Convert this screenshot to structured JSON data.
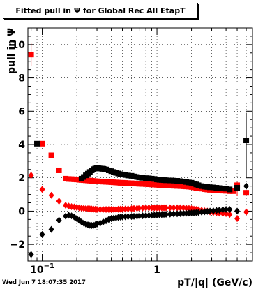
{
  "title": "Fitted pull in Ψ  for Global Rec All EtapT",
  "footer": "Wed Jun  7 18:07:35 2017",
  "colors": {
    "black_series": "#000000",
    "red_series": "#ff0000"
  },
  "chart_data": {
    "type": "scatter",
    "title": "Fitted pull in Ψ  for Global Rec All EtapT",
    "xlabel": "pT/|q| (GeV/c)",
    "ylabel": "pull in Ψ",
    "xscale": "log",
    "xlim": [
      0.075,
      6.8
    ],
    "ylim": [
      -3.0,
      11.0
    ],
    "x_tick_labels": [
      {
        "value": 0.1,
        "label": "10",
        "exp": "-1"
      },
      {
        "value": 1,
        "label": "1"
      }
    ],
    "y_tick_labels": [
      -2,
      0,
      2,
      4,
      6,
      8,
      10
    ],
    "grid": true,
    "legend": "none",
    "series": [
      {
        "marker": "square",
        "color": "#ff0000",
        "points": [
          [
            0.08,
            9.4
          ],
          [
            0.1,
            4.05
          ],
          [
            0.12,
            3.35
          ],
          [
            0.14,
            2.45
          ],
          [
            0.16,
            1.95
          ],
          [
            0.17,
            1.93
          ],
          [
            0.18,
            1.92
          ],
          [
            0.19,
            1.91
          ],
          [
            0.2,
            1.9
          ],
          [
            0.21,
            1.88
          ],
          [
            0.22,
            1.87
          ],
          [
            0.23,
            1.86
          ],
          [
            0.24,
            1.85
          ],
          [
            0.25,
            1.84
          ],
          [
            0.26,
            1.83
          ],
          [
            0.27,
            1.82
          ],
          [
            0.28,
            1.81
          ],
          [
            0.29,
            1.8
          ],
          [
            0.3,
            1.79
          ],
          [
            0.32,
            1.78
          ],
          [
            0.34,
            1.77
          ],
          [
            0.36,
            1.76
          ],
          [
            0.38,
            1.75
          ],
          [
            0.4,
            1.74
          ],
          [
            0.42,
            1.73
          ],
          [
            0.44,
            1.72
          ],
          [
            0.46,
            1.71
          ],
          [
            0.48,
            1.7
          ],
          [
            0.5,
            1.7
          ],
          [
            0.53,
            1.69
          ],
          [
            0.56,
            1.68
          ],
          [
            0.6,
            1.67
          ],
          [
            0.63,
            1.66
          ],
          [
            0.67,
            1.65
          ],
          [
            0.7,
            1.64
          ],
          [
            0.75,
            1.63
          ],
          [
            0.8,
            1.62
          ],
          [
            0.85,
            1.61
          ],
          [
            0.9,
            1.6
          ],
          [
            0.95,
            1.59
          ],
          [
            1.0,
            1.58
          ],
          [
            1.05,
            1.57
          ],
          [
            1.1,
            1.56
          ],
          [
            1.15,
            1.55
          ],
          [
            1.2,
            1.54
          ],
          [
            1.3,
            1.53
          ],
          [
            1.4,
            1.52
          ],
          [
            1.5,
            1.51
          ],
          [
            1.6,
            1.5
          ],
          [
            1.7,
            1.49
          ],
          [
            1.8,
            1.48
          ],
          [
            1.9,
            1.47
          ],
          [
            2.0,
            1.45
          ],
          [
            2.1,
            1.43
          ],
          [
            2.2,
            1.4
          ],
          [
            2.3,
            1.38
          ],
          [
            2.45,
            1.35
          ],
          [
            2.6,
            1.32
          ],
          [
            2.75,
            1.3
          ],
          [
            2.9,
            1.28
          ],
          [
            3.1,
            1.27
          ],
          [
            3.3,
            1.26
          ],
          [
            3.5,
            1.25
          ],
          [
            3.75,
            1.23
          ],
          [
            4.0,
            1.22
          ],
          [
            4.3,
            1.2
          ],
          [
            4.6,
            1.2
          ],
          [
            5.0,
            1.55
          ],
          [
            6.0,
            1.1
          ]
        ]
      },
      {
        "marker": "square",
        "color": "#000000",
        "points": [
          [
            0.09,
            4.05
          ],
          [
            0.22,
            1.95
          ],
          [
            0.23,
            2.05
          ],
          [
            0.24,
            2.15
          ],
          [
            0.25,
            2.25
          ],
          [
            0.26,
            2.35
          ],
          [
            0.27,
            2.45
          ],
          [
            0.28,
            2.52
          ],
          [
            0.29,
            2.56
          ],
          [
            0.3,
            2.58
          ],
          [
            0.31,
            2.57
          ],
          [
            0.32,
            2.56
          ],
          [
            0.33,
            2.55
          ],
          [
            0.34,
            2.54
          ],
          [
            0.35,
            2.52
          ],
          [
            0.36,
            2.5
          ],
          [
            0.38,
            2.45
          ],
          [
            0.4,
            2.4
          ],
          [
            0.42,
            2.35
          ],
          [
            0.44,
            2.3
          ],
          [
            0.46,
            2.26
          ],
          [
            0.48,
            2.22
          ],
          [
            0.5,
            2.2
          ],
          [
            0.53,
            2.17
          ],
          [
            0.56,
            2.14
          ],
          [
            0.6,
            2.12
          ],
          [
            0.63,
            2.08
          ],
          [
            0.67,
            2.05
          ],
          [
            0.7,
            2.02
          ],
          [
            0.75,
            2.0
          ],
          [
            0.8,
            1.98
          ],
          [
            0.85,
            1.97
          ],
          [
            0.9,
            1.95
          ],
          [
            0.95,
            1.93
          ],
          [
            1.0,
            1.9
          ],
          [
            1.05,
            1.88
          ],
          [
            1.1,
            1.87
          ],
          [
            1.15,
            1.86
          ],
          [
            1.2,
            1.85
          ],
          [
            1.3,
            1.84
          ],
          [
            1.4,
            1.83
          ],
          [
            1.5,
            1.82
          ],
          [
            1.6,
            1.8
          ],
          [
            1.7,
            1.78
          ],
          [
            1.8,
            1.75
          ],
          [
            1.9,
            1.72
          ],
          [
            2.0,
            1.7
          ],
          [
            2.1,
            1.65
          ],
          [
            2.2,
            1.6
          ],
          [
            2.3,
            1.55
          ],
          [
            2.45,
            1.5
          ],
          [
            2.6,
            1.47
          ],
          [
            2.75,
            1.45
          ],
          [
            2.9,
            1.43
          ],
          [
            3.1,
            1.42
          ],
          [
            3.3,
            1.4
          ],
          [
            3.5,
            1.38
          ],
          [
            3.75,
            1.36
          ],
          [
            4.0,
            1.35
          ],
          [
            4.3,
            1.3
          ],
          [
            5.0,
            1.4
          ],
          [
            6.0,
            4.25
          ]
        ]
      },
      {
        "marker": "diamond",
        "color": "#ff0000",
        "points": [
          [
            0.08,
            2.15
          ],
          [
            0.1,
            1.3
          ],
          [
            0.12,
            0.95
          ],
          [
            0.14,
            0.6
          ],
          [
            0.16,
            0.35
          ],
          [
            0.17,
            0.3
          ],
          [
            0.18,
            0.27
          ],
          [
            0.19,
            0.25
          ],
          [
            0.2,
            0.22
          ],
          [
            0.21,
            0.2
          ],
          [
            0.22,
            0.18
          ],
          [
            0.23,
            0.17
          ],
          [
            0.24,
            0.16
          ],
          [
            0.25,
            0.15
          ],
          [
            0.26,
            0.14
          ],
          [
            0.27,
            0.13
          ],
          [
            0.28,
            0.12
          ],
          [
            0.29,
            0.11
          ],
          [
            0.3,
            0.1
          ],
          [
            0.32,
            0.1
          ],
          [
            0.34,
            0.1
          ],
          [
            0.36,
            0.1
          ],
          [
            0.38,
            0.1
          ],
          [
            0.4,
            0.1
          ],
          [
            0.42,
            0.1
          ],
          [
            0.44,
            0.1
          ],
          [
            0.46,
            0.11
          ],
          [
            0.48,
            0.12
          ],
          [
            0.5,
            0.12
          ],
          [
            0.53,
            0.13
          ],
          [
            0.56,
            0.14
          ],
          [
            0.6,
            0.15
          ],
          [
            0.63,
            0.16
          ],
          [
            0.67,
            0.17
          ],
          [
            0.7,
            0.18
          ],
          [
            0.75,
            0.19
          ],
          [
            0.8,
            0.2
          ],
          [
            0.85,
            0.2
          ],
          [
            0.9,
            0.2
          ],
          [
            0.95,
            0.2
          ],
          [
            1.0,
            0.2
          ],
          [
            1.05,
            0.2
          ],
          [
            1.1,
            0.2
          ],
          [
            1.15,
            0.2
          ],
          [
            1.2,
            0.2
          ],
          [
            1.3,
            0.2
          ],
          [
            1.4,
            0.2
          ],
          [
            1.5,
            0.2
          ],
          [
            1.6,
            0.2
          ],
          [
            1.7,
            0.2
          ],
          [
            1.8,
            0.18
          ],
          [
            1.9,
            0.16
          ],
          [
            2.0,
            0.15
          ],
          [
            2.1,
            0.12
          ],
          [
            2.2,
            0.1
          ],
          [
            2.3,
            0.08
          ],
          [
            2.45,
            0.05
          ],
          [
            2.6,
            0.02
          ],
          [
            2.75,
            0.0
          ],
          [
            2.9,
            -0.05
          ],
          [
            3.1,
            -0.08
          ],
          [
            3.3,
            -0.1
          ],
          [
            3.5,
            -0.12
          ],
          [
            3.75,
            -0.14
          ],
          [
            4.0,
            -0.15
          ],
          [
            4.3,
            -0.2
          ],
          [
            5.0,
            -0.45
          ],
          [
            6.0,
            -0.05
          ]
        ]
      },
      {
        "marker": "diamond",
        "color": "#000000",
        "points": [
          [
            0.08,
            -2.6
          ],
          [
            0.1,
            -1.4
          ],
          [
            0.12,
            -1.1
          ],
          [
            0.14,
            -0.55
          ],
          [
            0.16,
            -0.3
          ],
          [
            0.17,
            -0.25
          ],
          [
            0.18,
            -0.28
          ],
          [
            0.19,
            -0.35
          ],
          [
            0.2,
            -0.45
          ],
          [
            0.21,
            -0.55
          ],
          [
            0.22,
            -0.65
          ],
          [
            0.23,
            -0.72
          ],
          [
            0.24,
            -0.78
          ],
          [
            0.25,
            -0.82
          ],
          [
            0.26,
            -0.85
          ],
          [
            0.27,
            -0.86
          ],
          [
            0.28,
            -0.85
          ],
          [
            0.29,
            -0.82
          ],
          [
            0.3,
            -0.78
          ],
          [
            0.32,
            -0.72
          ],
          [
            0.34,
            -0.65
          ],
          [
            0.36,
            -0.58
          ],
          [
            0.38,
            -0.5
          ],
          [
            0.4,
            -0.45
          ],
          [
            0.42,
            -0.42
          ],
          [
            0.44,
            -0.4
          ],
          [
            0.46,
            -0.38
          ],
          [
            0.48,
            -0.36
          ],
          [
            0.5,
            -0.35
          ],
          [
            0.53,
            -0.34
          ],
          [
            0.56,
            -0.33
          ],
          [
            0.6,
            -0.32
          ],
          [
            0.63,
            -0.31
          ],
          [
            0.67,
            -0.3
          ],
          [
            0.7,
            -0.29
          ],
          [
            0.75,
            -0.28
          ],
          [
            0.8,
            -0.27
          ],
          [
            0.85,
            -0.26
          ],
          [
            0.9,
            -0.25
          ],
          [
            0.95,
            -0.24
          ],
          [
            1.0,
            -0.23
          ],
          [
            1.05,
            -0.22
          ],
          [
            1.1,
            -0.21
          ],
          [
            1.15,
            -0.2
          ],
          [
            1.2,
            -0.19
          ],
          [
            1.3,
            -0.18
          ],
          [
            1.4,
            -0.17
          ],
          [
            1.5,
            -0.16
          ],
          [
            1.6,
            -0.15
          ],
          [
            1.7,
            -0.14
          ],
          [
            1.8,
            -0.13
          ],
          [
            1.9,
            -0.12
          ],
          [
            2.0,
            -0.11
          ],
          [
            2.1,
            -0.1
          ],
          [
            2.2,
            -0.09
          ],
          [
            2.3,
            -0.08
          ],
          [
            2.45,
            -0.06
          ],
          [
            2.6,
            -0.04
          ],
          [
            2.75,
            -0.02
          ],
          [
            2.9,
            0.0
          ],
          [
            3.1,
            0.02
          ],
          [
            3.3,
            0.04
          ],
          [
            3.5,
            0.06
          ],
          [
            3.75,
            0.08
          ],
          [
            4.0,
            0.1
          ],
          [
            4.3,
            0.1
          ],
          [
            5.0,
            0.0
          ],
          [
            6.0,
            1.5
          ]
        ]
      }
    ],
    "error_bars": [
      {
        "x": 0.08,
        "y_low": 8.7,
        "y_high": 10.1,
        "color": "#ff0000"
      },
      {
        "x": 5.0,
        "y_low": 0.9,
        "y_high": 1.75,
        "color": "#ff0000"
      },
      {
        "x": 6.0,
        "y_low": 2.0,
        "y_high": 5.9,
        "color": "#000000"
      }
    ]
  }
}
